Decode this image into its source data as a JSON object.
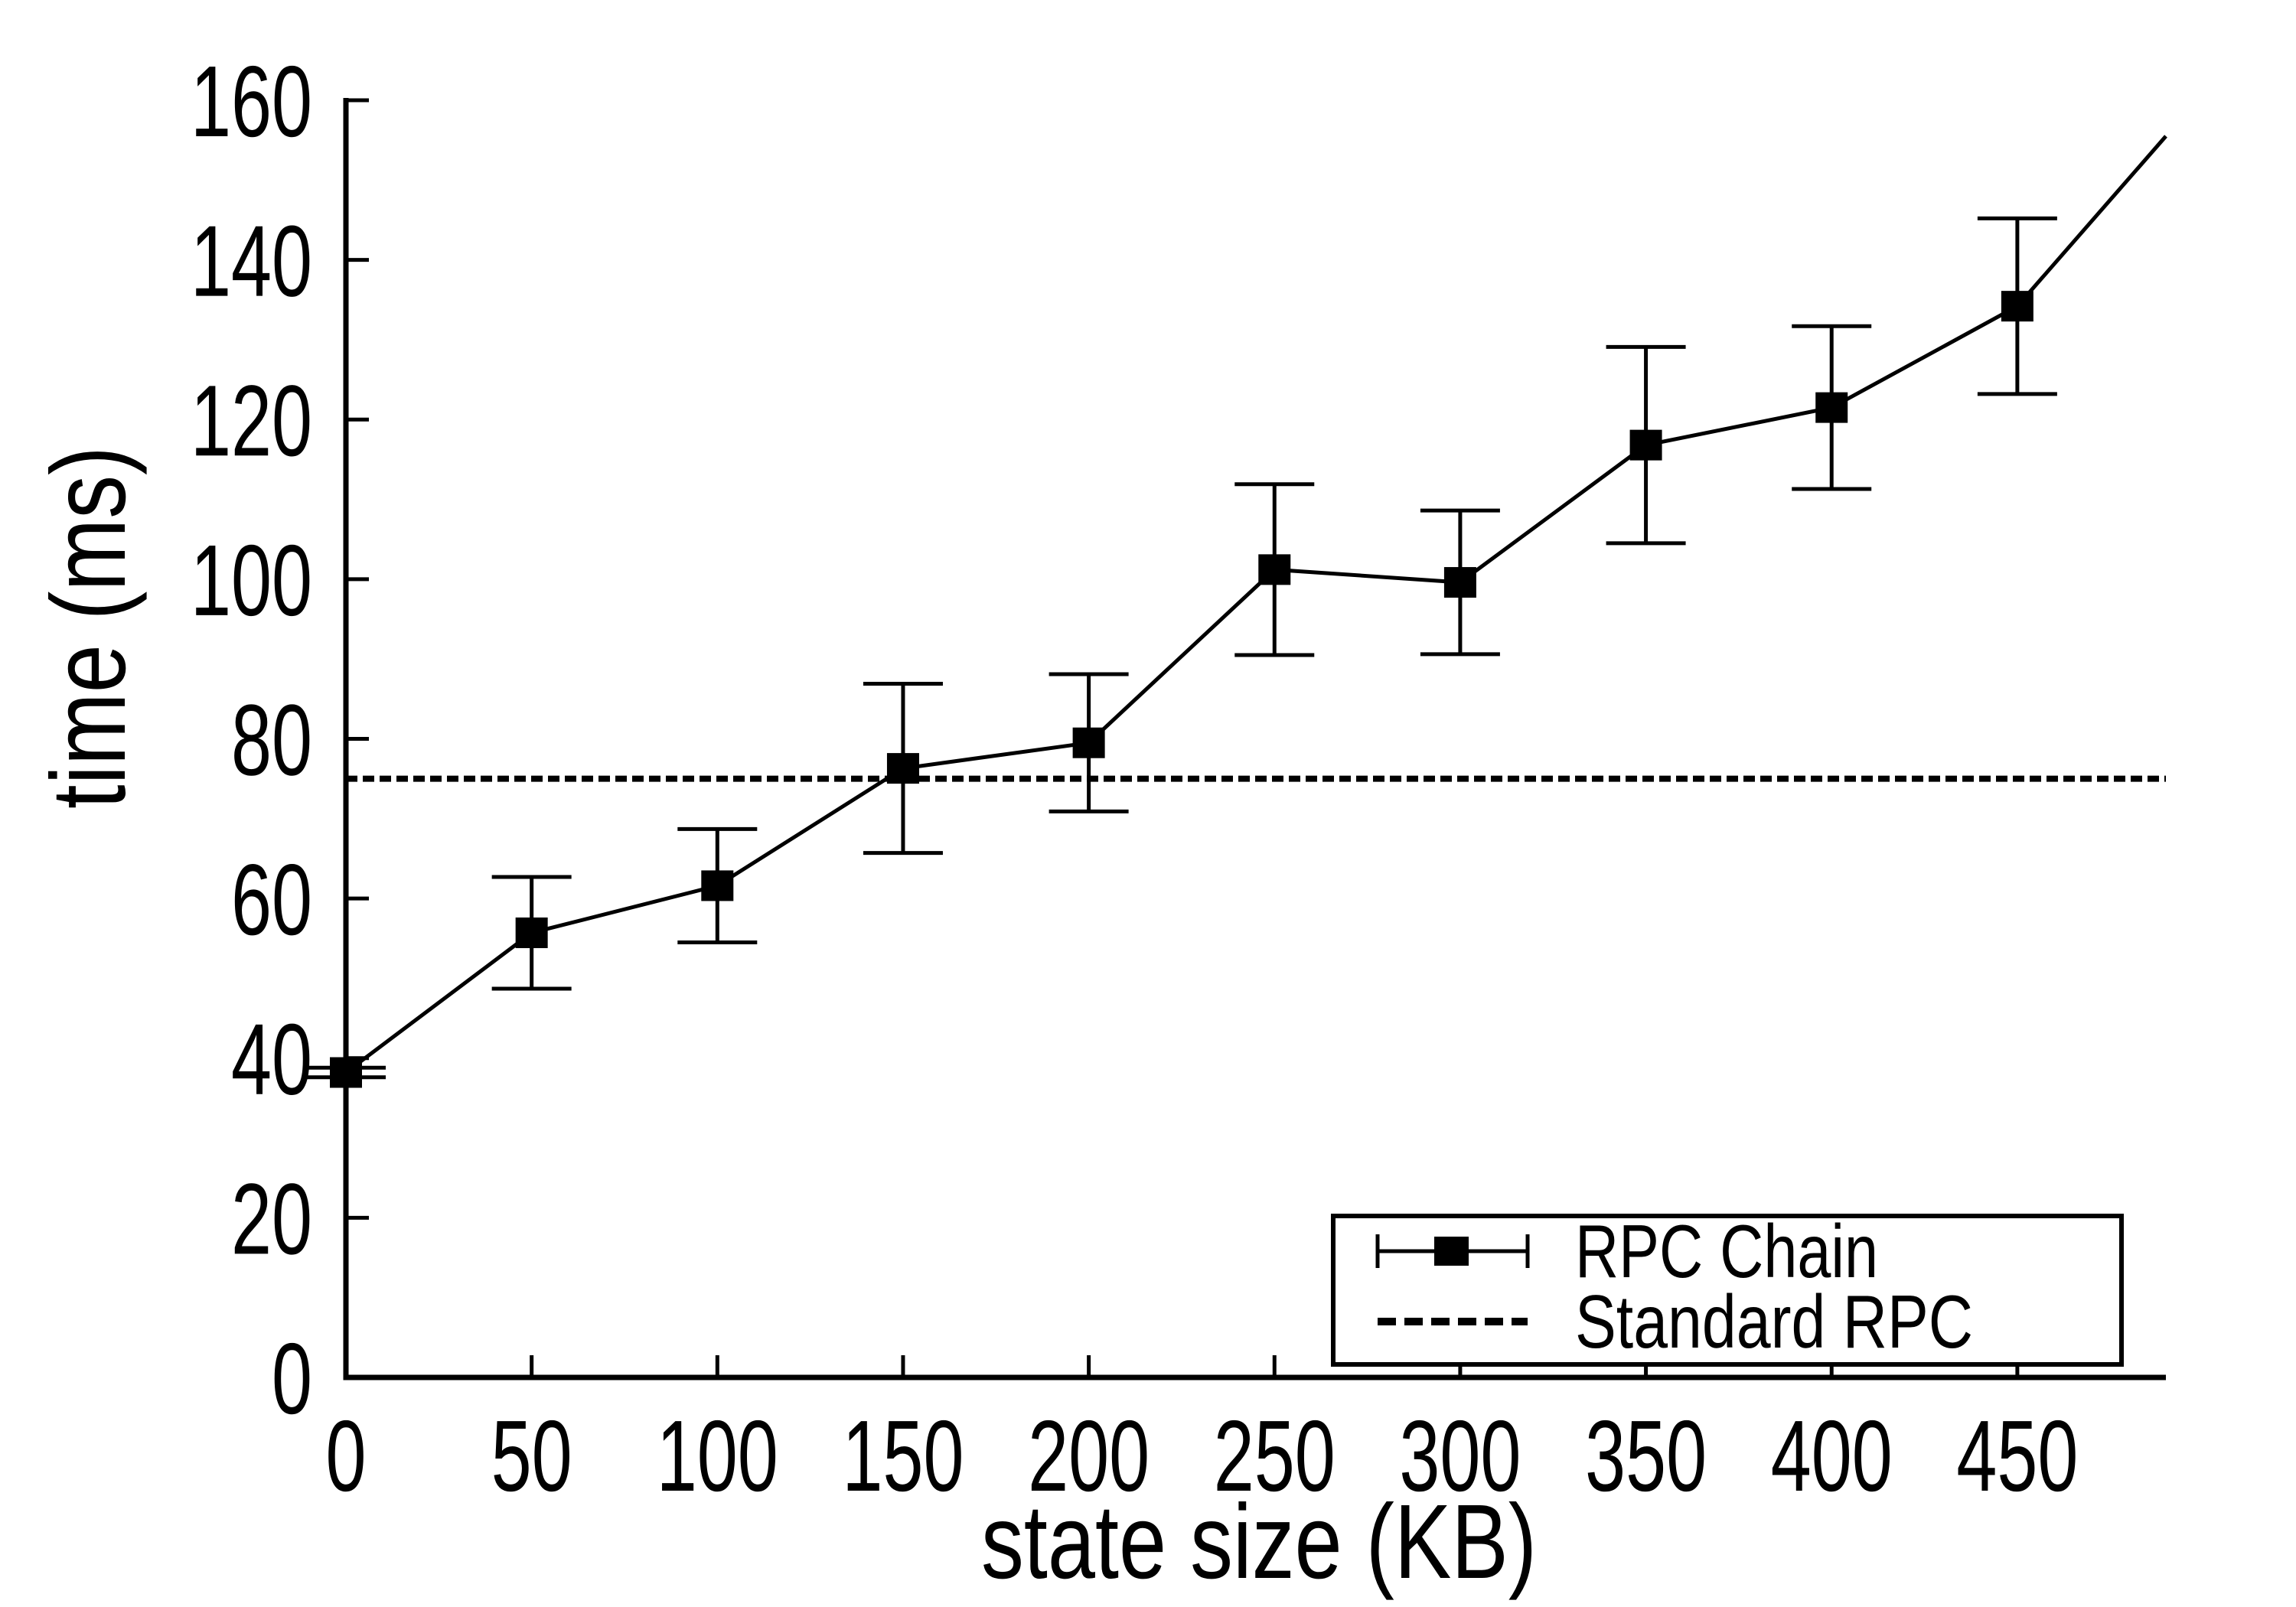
{
  "chart_data": {
    "type": "line",
    "title": "",
    "xlabel": "state size (KB)",
    "ylabel": "time (ms)",
    "xlim": [
      0,
      490
    ],
    "ylim": [
      0,
      160
    ],
    "x_ticks": [
      0,
      50,
      100,
      150,
      200,
      250,
      300,
      350,
      400,
      450
    ],
    "y_ticks": [
      0,
      20,
      40,
      60,
      80,
      100,
      120,
      140,
      160
    ],
    "grid": false,
    "background_color": "#ffffff",
    "line_color": "#000000",
    "series": [
      {
        "name": "RPC Chain",
        "style": "line with filled-square markers and y error bars",
        "x": [
          0,
          50,
          100,
          150,
          200,
          250,
          300,
          350,
          400,
          450
        ],
        "y": [
          38.2,
          55.7,
          61.6,
          76.3,
          79.5,
          101.2,
          99.6,
          116.8,
          121.5,
          134.2
        ],
        "yerr": [
          0.6,
          7.0,
          7.1,
          10.6,
          8.6,
          10.7,
          9.0,
          12.3,
          10.2,
          11.0
        ],
        "line_extends_to": {
          "x": 490,
          "y": 155.5
        }
      },
      {
        "name": "Standard RPC",
        "style": "dashed horizontal reference line",
        "value": 75
      }
    ],
    "legend": {
      "position": "bottom-right",
      "entries": [
        {
          "label": "RPC Chain",
          "sample": "errorbar-with-square-marker"
        },
        {
          "label": "Standard RPC",
          "sample": "dashed-line"
        }
      ]
    }
  }
}
